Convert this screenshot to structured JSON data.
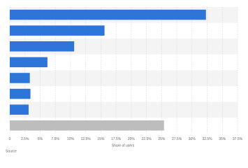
{
  "chart_data": {
    "type": "bar",
    "orientation": "horizontal",
    "categories": [
      null,
      null,
      null,
      null,
      null,
      null,
      null,
      null
    ],
    "values": [
      32.3,
      15.6,
      10.6,
      6.2,
      3.3,
      3.4,
      3.1,
      25.4
    ],
    "colors": [
      "#2e75d9",
      "#2e75d9",
      "#2e75d9",
      "#2e75d9",
      "#2e75d9",
      "#2e75d9",
      "#2e75d9",
      "#bdbdbd"
    ],
    "xlabel": "Share of users",
    "source": "Source",
    "xlim": [
      0,
      37.5
    ],
    "xticks": [
      0,
      {
        "value": 2.5,
        "label": "2.5%"
      },
      {
        "value": 5,
        "label": "5%"
      },
      {
        "value": 7.5,
        "label": "7.5%"
      },
      {
        "value": 10,
        "label": "10%"
      },
      {
        "value": 12.5,
        "label": "12.5%"
      },
      {
        "value": 15,
        "label": "15%"
      },
      {
        "value": 17.5,
        "label": "17.5%"
      },
      {
        "value": 20,
        "label": "20%"
      },
      {
        "value": 22.5,
        "label": "22.5%"
      },
      {
        "value": 25,
        "label": "25%"
      },
      {
        "value": 27.5,
        "label": "27.5%"
      },
      {
        "value": 30,
        "label": "30%"
      },
      {
        "value": 32.5,
        "label": "32.5%"
      },
      {
        "value": 35,
        "label": "35%"
      },
      {
        "value": 37.5,
        "label": "37.5%"
      }
    ],
    "grid": true
  }
}
